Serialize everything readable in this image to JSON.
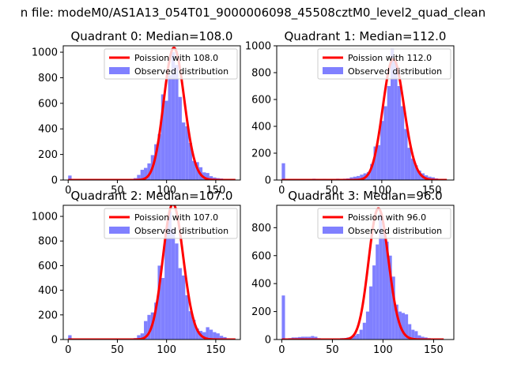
{
  "figure": {
    "suptitle": "n file: modeM0/AS1A13_054T01_9000006098_45508cztM0_level2_quad_clean"
  },
  "chart_data": [
    {
      "type": "bar",
      "title": "Quadrant 0: Median=108.0",
      "xlim": [
        -5,
        175
      ],
      "ylim": [
        0,
        1050
      ],
      "xticks": [
        0,
        50,
        100,
        150
      ],
      "yticks": [
        0,
        200,
        400,
        600,
        800,
        1000
      ],
      "bin_width": 3.5,
      "histogram": [
        [
          0,
          35
        ],
        [
          3.5,
          5
        ],
        [
          7,
          3
        ],
        [
          10.5,
          2
        ],
        [
          14,
          2
        ],
        [
          17.5,
          2
        ],
        [
          21,
          3
        ],
        [
          24.5,
          2
        ],
        [
          28,
          3
        ],
        [
          31.5,
          2
        ],
        [
          35,
          2
        ],
        [
          38.5,
          2
        ],
        [
          42,
          3
        ],
        [
          45.5,
          2
        ],
        [
          49,
          2
        ],
        [
          52.5,
          2
        ],
        [
          56,
          3
        ],
        [
          59.5,
          3
        ],
        [
          63,
          6
        ],
        [
          66.5,
          15
        ],
        [
          70,
          40
        ],
        [
          73.5,
          80
        ],
        [
          77,
          95
        ],
        [
          80.5,
          130
        ],
        [
          84,
          195
        ],
        [
          87.5,
          280
        ],
        [
          91,
          360
        ],
        [
          94.5,
          670
        ],
        [
          98,
          620
        ],
        [
          101.5,
          820
        ],
        [
          105,
          1000
        ],
        [
          108.5,
          900
        ],
        [
          112,
          650
        ],
        [
          115.5,
          450
        ],
        [
          119,
          420
        ],
        [
          122.5,
          290
        ],
        [
          126,
          150
        ],
        [
          129.5,
          140
        ],
        [
          133,
          100
        ],
        [
          136.5,
          60
        ],
        [
          140,
          55
        ],
        [
          143.5,
          30
        ],
        [
          147,
          20
        ],
        [
          150.5,
          15
        ],
        [
          154,
          12
        ],
        [
          157.5,
          8
        ],
        [
          161,
          5
        ],
        [
          164.5,
          4
        ],
        [
          168,
          3
        ]
      ],
      "poisson": {
        "lambda": 108.0,
        "x_range": [
          0,
          170
        ]
      },
      "legend": {
        "placement": "top-right",
        "entries": [
          "Poission with 108.0",
          "Observed distribution"
        ]
      }
    },
    {
      "type": "bar",
      "title": "Quadrant 1: Median=112.0",
      "xlim": [
        -5,
        172
      ],
      "ylim": [
        0,
        1000
      ],
      "xticks": [
        0,
        50,
        100,
        150
      ],
      "yticks": [
        0,
        200,
        400,
        600,
        800,
        1000
      ],
      "bin_width": 3.4,
      "histogram": [
        [
          0,
          125
        ],
        [
          3.4,
          5
        ],
        [
          6.8,
          3
        ],
        [
          10.2,
          3
        ],
        [
          13.6,
          4
        ],
        [
          17,
          3
        ],
        [
          20.4,
          4
        ],
        [
          23.8,
          3
        ],
        [
          27.2,
          8
        ],
        [
          30.6,
          10
        ],
        [
          34,
          7
        ],
        [
          37.4,
          8
        ],
        [
          40.8,
          9
        ],
        [
          44.2,
          7
        ],
        [
          47.6,
          8
        ],
        [
          51,
          6
        ],
        [
          54.4,
          10
        ],
        [
          57.8,
          8
        ],
        [
          61.2,
          10
        ],
        [
          64.6,
          12
        ],
        [
          68,
          20
        ],
        [
          71.4,
          25
        ],
        [
          74.8,
          30
        ],
        [
          78.2,
          40
        ],
        [
          81.6,
          50
        ],
        [
          85,
          60
        ],
        [
          88.4,
          120
        ],
        [
          91.8,
          250
        ],
        [
          95.2,
          260
        ],
        [
          98.6,
          440
        ],
        [
          102,
          550
        ],
        [
          105.4,
          700
        ],
        [
          108.8,
          980
        ],
        [
          112.2,
          880
        ],
        [
          115.6,
          700
        ],
        [
          119,
          550
        ],
        [
          122.4,
          380
        ],
        [
          125.8,
          240
        ],
        [
          129.2,
          160
        ],
        [
          132.6,
          110
        ],
        [
          136,
          70
        ],
        [
          139.4,
          50
        ],
        [
          142.8,
          35
        ],
        [
          146.2,
          25
        ],
        [
          149.6,
          20
        ],
        [
          153,
          12
        ],
        [
          156.4,
          8
        ],
        [
          159.8,
          5
        ],
        [
          163.2,
          3
        ]
      ],
      "poisson": {
        "lambda": 112.0,
        "x_range": [
          0,
          165
        ]
      },
      "legend": {
        "placement": "top-right",
        "entries": [
          "Poission with 112.0",
          "Observed distribution"
        ]
      }
    },
    {
      "type": "bar",
      "title": "Quadrant 2: Median=107.0",
      "xlim": [
        -5,
        175
      ],
      "ylim": [
        0,
        1090
      ],
      "xticks": [
        0,
        50,
        100,
        150
      ],
      "yticks": [
        0,
        200,
        400,
        600,
        800,
        1000
      ],
      "bin_width": 3.5,
      "histogram": [
        [
          0,
          35
        ],
        [
          3.5,
          5
        ],
        [
          7,
          3
        ],
        [
          10.5,
          2
        ],
        [
          14,
          2
        ],
        [
          17.5,
          2
        ],
        [
          21,
          3
        ],
        [
          24.5,
          2
        ],
        [
          28,
          3
        ],
        [
          31.5,
          2
        ],
        [
          35,
          2
        ],
        [
          38.5,
          2
        ],
        [
          42,
          3
        ],
        [
          45.5,
          2
        ],
        [
          49,
          2
        ],
        [
          52.5,
          2
        ],
        [
          56,
          3
        ],
        [
          59.5,
          3
        ],
        [
          63,
          6
        ],
        [
          66.5,
          12
        ],
        [
          70,
          35
        ],
        [
          73.5,
          50
        ],
        [
          77,
          150
        ],
        [
          80.5,
          200
        ],
        [
          84,
          220
        ],
        [
          87.5,
          300
        ],
        [
          91,
          600
        ],
        [
          94.5,
          500
        ],
        [
          98,
          860
        ],
        [
          101.5,
          1040
        ],
        [
          105,
          900
        ],
        [
          108.5,
          780
        ],
        [
          112,
          580
        ],
        [
          115.5,
          520
        ],
        [
          119,
          360
        ],
        [
          122.5,
          230
        ],
        [
          126,
          160
        ],
        [
          129.5,
          90
        ],
        [
          133,
          70
        ],
        [
          136.5,
          60
        ],
        [
          140,
          100
        ],
        [
          143.5,
          80
        ],
        [
          147,
          60
        ],
        [
          150.5,
          50
        ],
        [
          154,
          30
        ],
        [
          157.5,
          20
        ],
        [
          161,
          10
        ],
        [
          164.5,
          5
        ],
        [
          168,
          3
        ]
      ],
      "poisson": {
        "lambda": 107.0,
        "x_range": [
          0,
          170
        ]
      },
      "legend": {
        "placement": "top-right",
        "entries": [
          "Poission with 107.0",
          "Observed distribution"
        ]
      }
    },
    {
      "type": "bar",
      "title": "Quadrant 3: Median=96.0",
      "xlim": [
        -5,
        170
      ],
      "ylim": [
        0,
        960
      ],
      "xticks": [
        0,
        50,
        100,
        150
      ],
      "yticks": [
        0,
        200,
        400,
        600,
        800
      ],
      "bin_width": 3.2,
      "histogram": [
        [
          0,
          315
        ],
        [
          3.2,
          5
        ],
        [
          6.4,
          10
        ],
        [
          9.6,
          15
        ],
        [
          12.8,
          15
        ],
        [
          16,
          18
        ],
        [
          19.2,
          20
        ],
        [
          22.4,
          20
        ],
        [
          25.6,
          20
        ],
        [
          28.8,
          25
        ],
        [
          32,
          20
        ],
        [
          35.2,
          10
        ],
        [
          38.4,
          8
        ],
        [
          41.6,
          6
        ],
        [
          44.8,
          5
        ],
        [
          48,
          5
        ],
        [
          51.2,
          6
        ],
        [
          54.4,
          8
        ],
        [
          57.6,
          10
        ],
        [
          60.8,
          10
        ],
        [
          64,
          15
        ],
        [
          67.2,
          20
        ],
        [
          70.4,
          30
        ],
        [
          73.6,
          40
        ],
        [
          76.8,
          70
        ],
        [
          80,
          120
        ],
        [
          83.2,
          200
        ],
        [
          86.4,
          380
        ],
        [
          89.6,
          530
        ],
        [
          92.8,
          680
        ],
        [
          96,
          900
        ],
        [
          99.2,
          760
        ],
        [
          102.4,
          700
        ],
        [
          105.6,
          600
        ],
        [
          108.8,
          450
        ],
        [
          112,
          250
        ],
        [
          115.2,
          200
        ],
        [
          118.4,
          190
        ],
        [
          121.6,
          180
        ],
        [
          124.8,
          110
        ],
        [
          128,
          70
        ],
        [
          131.2,
          60
        ],
        [
          134.4,
          30
        ],
        [
          137.6,
          20
        ],
        [
          140.8,
          15
        ],
        [
          144,
          10
        ],
        [
          147.2,
          8
        ],
        [
          150.4,
          5
        ],
        [
          153.6,
          3
        ]
      ],
      "poisson": {
        "lambda": 96.0,
        "x_range": [
          0,
          160
        ]
      },
      "legend": {
        "placement": "top-right",
        "entries": [
          "Poission with 96.0",
          "Observed distribution"
        ]
      }
    }
  ],
  "colors": {
    "histogram": "#8080ff",
    "poisson_line": "#ff0000",
    "axis": "#000000",
    "background": "#ffffff"
  }
}
